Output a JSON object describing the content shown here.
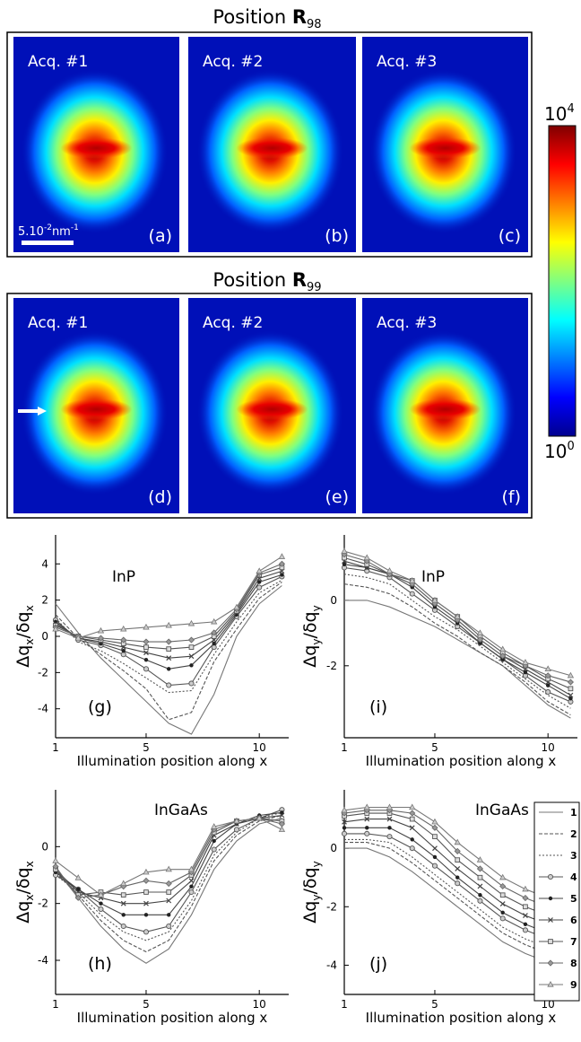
{
  "position_panels": [
    {
      "title_prefix": "Position ",
      "title_bold": "R",
      "title_sub": "98",
      "maps": [
        {
          "acq": "Acq. #1",
          "letter": "(a)"
        },
        {
          "acq": "Acq. #2",
          "letter": "(b)"
        },
        {
          "acq": "Acq. #3",
          "letter": "(c)"
        }
      ]
    },
    {
      "title_prefix": "Position ",
      "title_bold": "R",
      "title_sub": "99",
      "maps": [
        {
          "acq": "Acq. #1",
          "letter": "(d)"
        },
        {
          "acq": "Acq. #2",
          "letter": "(e)"
        },
        {
          "acq": "Acq. #3",
          "letter": "(f)"
        }
      ]
    }
  ],
  "scale_bar": {
    "text": "5.10",
    "sup1": "-2",
    "unit": "nm",
    "sup2": "-1"
  },
  "colorbar": {
    "top_base": "10",
    "top_exp": "4",
    "bottom_base": "10",
    "bottom_exp": "0",
    "colors": [
      "#7f0000",
      "#ff0000",
      "#ff8000",
      "#ffff00",
      "#80ff80",
      "#00ffff",
      "#0080ff",
      "#0000ff",
      "#00008f"
    ]
  },
  "legend": [
    "1",
    "2",
    "3",
    "4",
    "5",
    "6",
    "7",
    "8",
    "9"
  ],
  "chart_data": [
    {
      "type": "line",
      "letter": "(g)",
      "material": "InP",
      "ylabel_main": "Δq",
      "ylabel_sub": "x",
      "ylabel_den": "/δq",
      "ylabel_den_sub": "x",
      "xlabel": "Illumination position along x",
      "x": [
        1,
        2,
        3,
        4,
        5,
        6,
        7,
        8,
        9,
        10,
        11
      ],
      "xticks": [
        1,
        5,
        10
      ],
      "yticks": [
        -4,
        -2,
        0,
        2,
        4
      ],
      "xlim": [
        1,
        11.3
      ],
      "ylim": [
        -5.6,
        5.6
      ],
      "series": [
        {
          "name": "1",
          "values": [
            1.8,
            0.2,
            -1.2,
            -2.4,
            -3.6,
            -4.8,
            -5.4,
            -3.2,
            0.0,
            1.8,
            2.8
          ]
        },
        {
          "name": "2",
          "values": [
            1.2,
            -0.1,
            -1.0,
            -1.9,
            -2.9,
            -4.6,
            -4.2,
            -1.4,
            0.4,
            2.1,
            3.0
          ]
        },
        {
          "name": "3",
          "values": [
            1.0,
            -0.3,
            -0.8,
            -1.5,
            -2.3,
            -3.1,
            -3.0,
            -1.0,
            0.8,
            2.4,
            3.1
          ]
        },
        {
          "name": "4",
          "values": [
            0.9,
            -0.2,
            -0.5,
            -1.0,
            -1.8,
            -2.7,
            -2.6,
            -0.6,
            1.1,
            2.7,
            3.3
          ]
        },
        {
          "name": "5",
          "values": [
            0.8,
            -0.1,
            -0.4,
            -0.8,
            -1.3,
            -1.8,
            -1.6,
            -0.4,
            1.2,
            3.0,
            3.4
          ]
        },
        {
          "name": "6",
          "values": [
            0.7,
            -0.1,
            -0.3,
            -0.6,
            -0.9,
            -1.2,
            -1.1,
            -0.2,
            1.3,
            3.2,
            3.6
          ]
        },
        {
          "name": "7",
          "values": [
            0.6,
            0.0,
            -0.2,
            -0.4,
            -0.6,
            -0.7,
            -0.6,
            0.0,
            1.4,
            3.4,
            3.8
          ]
        },
        {
          "name": "8",
          "values": [
            0.5,
            0.0,
            -0.1,
            -0.2,
            -0.3,
            -0.3,
            -0.2,
            0.2,
            1.5,
            3.5,
            4.0
          ]
        },
        {
          "name": "9",
          "values": [
            0.4,
            -0.1,
            0.3,
            0.4,
            0.5,
            0.6,
            0.7,
            0.8,
            1.6,
            3.6,
            4.4
          ]
        }
      ]
    },
    {
      "type": "line",
      "letter": "(i)",
      "material": "InP",
      "ylabel_main": "Δq",
      "ylabel_sub": "y",
      "ylabel_den": "/δq",
      "ylabel_den_sub": "y",
      "xlabel": "Illumination position along x",
      "x": [
        1,
        2,
        3,
        4,
        5,
        6,
        7,
        8,
        9,
        10,
        11
      ],
      "xticks": [
        1,
        5,
        10
      ],
      "yticks": [
        -2,
        0
      ],
      "xlim": [
        1,
        11.3
      ],
      "ylim": [
        -4.2,
        2.0
      ],
      "series": [
        {
          "name": "1",
          "values": [
            0.0,
            0.0,
            -0.2,
            -0.5,
            -0.8,
            -1.2,
            -1.6,
            -2.0,
            -2.6,
            -3.2,
            -3.6
          ]
        },
        {
          "name": "2",
          "values": [
            0.5,
            0.4,
            0.2,
            -0.2,
            -0.7,
            -1.1,
            -1.6,
            -2.0,
            -2.5,
            -3.1,
            -3.5
          ]
        },
        {
          "name": "3",
          "values": [
            0.8,
            0.7,
            0.5,
            0.0,
            -0.5,
            -0.9,
            -1.4,
            -1.9,
            -2.4,
            -2.9,
            -3.3
          ]
        },
        {
          "name": "4",
          "values": [
            1.0,
            0.9,
            0.7,
            0.2,
            -0.3,
            -0.8,
            -1.3,
            -1.8,
            -2.3,
            -2.8,
            -3.1
          ]
        },
        {
          "name": "5",
          "values": [
            1.1,
            1.0,
            0.8,
            0.4,
            -0.2,
            -0.7,
            -1.3,
            -1.8,
            -2.2,
            -2.6,
            -3.0
          ]
        },
        {
          "name": "6",
          "values": [
            1.2,
            1.0,
            0.8,
            0.5,
            -0.1,
            -0.6,
            -1.2,
            -1.7,
            -2.1,
            -2.5,
            -2.9
          ]
        },
        {
          "name": "7",
          "values": [
            1.3,
            1.1,
            0.8,
            0.6,
            0.0,
            -0.5,
            -1.1,
            -1.6,
            -2.0,
            -2.4,
            -2.7
          ]
        },
        {
          "name": "8",
          "values": [
            1.4,
            1.2,
            0.8,
            0.5,
            -0.1,
            -0.6,
            -1.2,
            -1.7,
            -2.0,
            -2.3,
            -2.5
          ]
        },
        {
          "name": "9",
          "values": [
            1.5,
            1.3,
            0.9,
            0.6,
            0.0,
            -0.5,
            -1.0,
            -1.5,
            -1.9,
            -2.1,
            -2.3
          ]
        }
      ]
    },
    {
      "type": "line",
      "letter": "(h)",
      "material": "InGaAs",
      "ylabel_main": "Δq",
      "ylabel_sub": "x",
      "ylabel_den": "/δq",
      "ylabel_den_sub": "x",
      "xlabel": "Illumination position along x",
      "x": [
        1,
        2,
        3,
        4,
        5,
        6,
        7,
        8,
        9,
        10,
        11
      ],
      "xticks": [
        1,
        5,
        10
      ],
      "yticks": [
        -4,
        -2,
        0
      ],
      "xlim": [
        1,
        11.3
      ],
      "ylim": [
        -5.2,
        2.0
      ],
      "series": [
        {
          "name": "1",
          "values": [
            -0.8,
            -1.8,
            -2.8,
            -3.6,
            -4.1,
            -3.6,
            -2.4,
            -0.8,
            0.2,
            0.8,
            1.0
          ]
        },
        {
          "name": "2",
          "values": [
            -0.9,
            -1.7,
            -2.6,
            -3.3,
            -3.7,
            -3.3,
            -2.1,
            -0.5,
            0.4,
            0.9,
            1.1
          ]
        },
        {
          "name": "3",
          "values": [
            -1.0,
            -1.6,
            -2.4,
            -3.0,
            -3.3,
            -3.0,
            -1.9,
            -0.3,
            0.5,
            1.0,
            1.2
          ]
        },
        {
          "name": "4",
          "values": [
            -1.0,
            -1.5,
            -2.2,
            -2.8,
            -3.0,
            -2.8,
            -1.6,
            -0.1,
            0.6,
            1.0,
            1.3
          ]
        },
        {
          "name": "5",
          "values": [
            -0.9,
            -1.5,
            -2.0,
            -2.4,
            -2.4,
            -2.4,
            -1.4,
            0.2,
            0.8,
            1.1,
            1.2
          ]
        },
        {
          "name": "6",
          "values": [
            -0.8,
            -1.6,
            -1.8,
            -2.0,
            -2.0,
            -1.9,
            -1.2,
            0.4,
            0.8,
            1.0,
            1.1
          ]
        },
        {
          "name": "7",
          "values": [
            -0.8,
            -1.7,
            -1.6,
            -1.7,
            -1.6,
            -1.6,
            -1.0,
            0.5,
            0.9,
            1.0,
            0.9
          ]
        },
        {
          "name": "8",
          "values": [
            -0.7,
            -1.8,
            -1.7,
            -1.4,
            -1.2,
            -1.3,
            -0.9,
            0.6,
            0.9,
            1.0,
            0.8
          ]
        },
        {
          "name": "9",
          "values": [
            -0.5,
            -1.1,
            -1.7,
            -1.3,
            -0.9,
            -0.8,
            -0.8,
            0.7,
            0.9,
            1.0,
            0.6
          ]
        }
      ]
    },
    {
      "type": "line",
      "letter": "(j)",
      "material": "InGaAs",
      "ylabel_main": "Δq",
      "ylabel_sub": "y",
      "ylabel_den": "/δq",
      "ylabel_den_sub": "y",
      "xlabel": "Illumination position along x",
      "x": [
        1,
        2,
        3,
        4,
        5,
        6,
        7,
        8,
        9,
        10,
        11
      ],
      "xticks": [
        1,
        5,
        10
      ],
      "yticks": [
        -4,
        -2,
        0
      ],
      "xlim": [
        1,
        11.3
      ],
      "ylim": [
        -5.0,
        2.0
      ],
      "series": [
        {
          "name": "1",
          "values": [
            0.0,
            0.0,
            -0.3,
            -0.8,
            -1.4,
            -2.0,
            -2.6,
            -3.2,
            -3.6,
            -3.9,
            -4.1
          ]
        },
        {
          "name": "2",
          "values": [
            0.2,
            0.2,
            0.0,
            -0.5,
            -1.1,
            -1.7,
            -2.3,
            -2.9,
            -3.3,
            -3.6,
            -3.8
          ]
        },
        {
          "name": "3",
          "values": [
            0.3,
            0.3,
            0.2,
            -0.3,
            -0.9,
            -1.5,
            -2.1,
            -2.7,
            -3.1,
            -3.4,
            -3.6
          ]
        },
        {
          "name": "4",
          "values": [
            0.5,
            0.5,
            0.4,
            0.0,
            -0.6,
            -1.2,
            -1.8,
            -2.4,
            -2.8,
            -3.1,
            -3.3
          ]
        },
        {
          "name": "5",
          "values": [
            0.7,
            0.7,
            0.7,
            0.3,
            -0.3,
            -1.0,
            -1.6,
            -2.2,
            -2.6,
            -2.9,
            -3.1
          ]
        },
        {
          "name": "6",
          "values": [
            0.9,
            1.0,
            1.0,
            0.7,
            0.0,
            -0.7,
            -1.3,
            -1.9,
            -2.3,
            -2.6,
            -2.8
          ]
        },
        {
          "name": "7",
          "values": [
            1.1,
            1.2,
            1.2,
            1.0,
            0.4,
            -0.4,
            -1.0,
            -1.6,
            -2.0,
            -2.3,
            -2.5
          ]
        },
        {
          "name": "8",
          "values": [
            1.2,
            1.3,
            1.3,
            1.2,
            0.7,
            -0.1,
            -0.7,
            -1.3,
            -1.7,
            -2.0,
            -2.2
          ]
        },
        {
          "name": "9",
          "values": [
            1.3,
            1.4,
            1.4,
            1.4,
            0.9,
            0.2,
            -0.4,
            -1.0,
            -1.4,
            -1.7,
            -1.9
          ]
        }
      ]
    }
  ]
}
